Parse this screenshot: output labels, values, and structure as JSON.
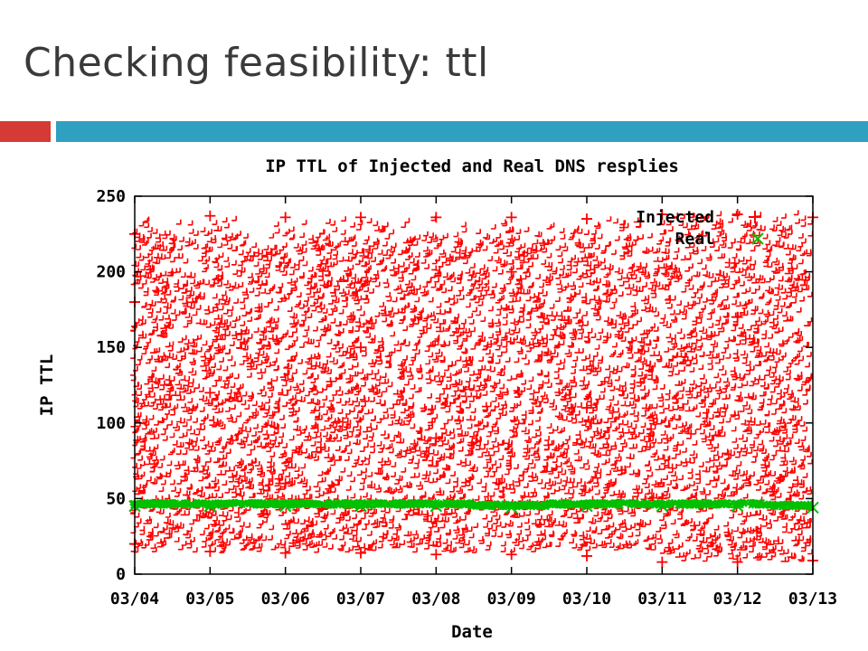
{
  "slide": {
    "title": "Checking feasibility: ttl",
    "accent_colors": {
      "red": "#d63a35",
      "blue": "#2fa0bf"
    }
  },
  "chart_data": {
    "type": "scatter",
    "title": "IP TTL of Injected and Real DNS resplies",
    "xlabel": "Date",
    "ylabel": "IP TTL",
    "x_type": "date",
    "xlim": [
      "03/04",
      "03/13"
    ],
    "ylim": [
      0,
      250
    ],
    "x_ticks": [
      "03/04",
      "03/05",
      "03/06",
      "03/07",
      "03/08",
      "03/09",
      "03/10",
      "03/11",
      "03/12",
      "03/13"
    ],
    "y_ticks": [
      0,
      50,
      100,
      150,
      200,
      250
    ],
    "grid": false,
    "legend_position": "top-right",
    "series": [
      {
        "name": "Injected",
        "marker": "+",
        "color": "#ff0000",
        "description_range": {
          "x_from": "03/04",
          "x_to": "03/13",
          "y_min_approx": 8,
          "y_max_approx": 238
        },
        "points": [
          {
            "x": "03/04",
            "y": 225
          },
          {
            "x": "03/04",
            "y": 180
          },
          {
            "x": "03/04",
            "y": 20
          },
          {
            "x": "03/05",
            "y": 237
          },
          {
            "x": "03/05",
            "y": 120
          },
          {
            "x": "03/05",
            "y": 15
          },
          {
            "x": "03/06",
            "y": 236
          },
          {
            "x": "03/06",
            "y": 60
          },
          {
            "x": "03/06",
            "y": 14
          },
          {
            "x": "03/07",
            "y": 236
          },
          {
            "x": "03/07",
            "y": 150
          },
          {
            "x": "03/07",
            "y": 14
          },
          {
            "x": "03/08",
            "y": 236
          },
          {
            "x": "03/08",
            "y": 90
          },
          {
            "x": "03/08",
            "y": 13
          },
          {
            "x": "03/09",
            "y": 236
          },
          {
            "x": "03/09",
            "y": 200
          },
          {
            "x": "03/09",
            "y": 13
          },
          {
            "x": "03/10",
            "y": 235
          },
          {
            "x": "03/10",
            "y": 110
          },
          {
            "x": "03/10",
            "y": 12
          },
          {
            "x": "03/11",
            "y": 238
          },
          {
            "x": "03/11",
            "y": 50
          },
          {
            "x": "03/11",
            "y": 8
          },
          {
            "x": "03/12",
            "y": 238
          },
          {
            "x": "03/12",
            "y": 170
          },
          {
            "x": "03/12",
            "y": 8
          },
          {
            "x": "03/13",
            "y": 236
          },
          {
            "x": "03/13",
            "y": 9
          }
        ]
      },
      {
        "name": "Real",
        "marker": "x",
        "color": "#00c000",
        "points": [
          {
            "x": "03/04",
            "y": 45
          },
          {
            "x": "03/05",
            "y": 45
          },
          {
            "x": "03/06",
            "y": 45
          },
          {
            "x": "03/07",
            "y": 45
          },
          {
            "x": "03/08",
            "y": 45
          },
          {
            "x": "03/09",
            "y": 44
          },
          {
            "x": "03/10",
            "y": 45
          },
          {
            "x": "03/11",
            "y": 45
          },
          {
            "x": "03/12",
            "y": 45
          },
          {
            "x": "03/13",
            "y": 44
          }
        ]
      }
    ]
  }
}
